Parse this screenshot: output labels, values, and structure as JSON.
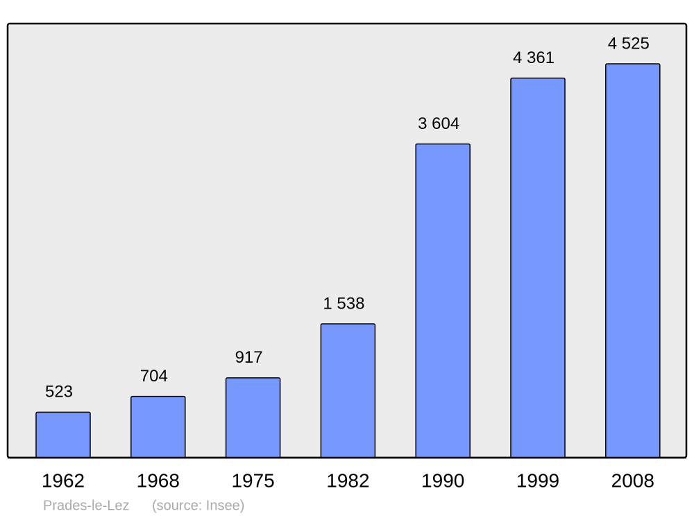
{
  "chart_data": {
    "type": "bar",
    "categories": [
      "1962",
      "1968",
      "1975",
      "1982",
      "1990",
      "1999",
      "2008"
    ],
    "values": [
      523,
      704,
      917,
      1538,
      3604,
      4361,
      4525
    ],
    "value_labels": [
      "523",
      "704",
      "917",
      "1 538",
      "3 604",
      "4 361",
      "4 525"
    ],
    "color": "#7799ff",
    "caption": "Prades-le-Lez",
    "source": "(source: Insee)"
  }
}
